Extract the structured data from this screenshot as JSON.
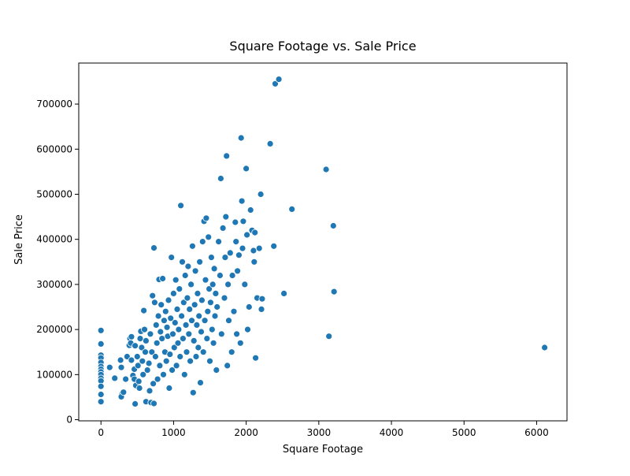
{
  "chart_data": {
    "type": "scatter",
    "title": "Square Footage vs. Sale Price",
    "xlabel": "Square Footage",
    "ylabel": "Sale Price",
    "xlim": [
      -306,
      6418
    ],
    "ylim": [
      -2530,
      791000
    ],
    "xticks": [
      0,
      1000,
      2000,
      3000,
      4000,
      5000,
      6000
    ],
    "yticks": [
      0,
      100000,
      200000,
      300000,
      400000,
      500000,
      600000,
      700000
    ],
    "grid": false,
    "legend": "none",
    "marker_color": "#1f77b4",
    "series": [
      {
        "points": [
          [
            0,
            198000
          ],
          [
            0,
            168000
          ],
          [
            0,
            143000
          ],
          [
            0,
            137000
          ],
          [
            0,
            127000
          ],
          [
            0,
            118000
          ],
          [
            0,
            112000
          ],
          [
            0,
            106000
          ],
          [
            0,
            100000
          ],
          [
            0,
            92000
          ],
          [
            0,
            86000
          ],
          [
            0,
            74000
          ],
          [
            0,
            56000
          ],
          [
            0,
            40000
          ],
          [
            120,
            116000
          ],
          [
            190,
            92000
          ],
          [
            270,
            132000
          ],
          [
            280,
            116000
          ],
          [
            290,
            57000
          ],
          [
            280,
            51000
          ],
          [
            310,
            61000
          ],
          [
            340,
            90000
          ],
          [
            360,
            140000
          ],
          [
            390,
            165000
          ],
          [
            400,
            180000
          ],
          [
            420,
            184000
          ],
          [
            410,
            170000
          ],
          [
            420,
            132000
          ],
          [
            440,
            98000
          ],
          [
            460,
            90000
          ],
          [
            460,
            112000
          ],
          [
            470,
            35000
          ],
          [
            470,
            164000
          ],
          [
            480,
            76000
          ],
          [
            500,
            140000
          ],
          [
            510,
            120000
          ],
          [
            520,
            85000
          ],
          [
            530,
            70000
          ],
          [
            540,
            180000
          ],
          [
            550,
            196000
          ],
          [
            560,
            160000
          ],
          [
            570,
            130000
          ],
          [
            580,
            100000
          ],
          [
            590,
            242000
          ],
          [
            600,
            200000
          ],
          [
            610,
            150000
          ],
          [
            620,
            175000
          ],
          [
            620,
            40000
          ],
          [
            640,
            110000
          ],
          [
            660,
            125000
          ],
          [
            670,
            64000
          ],
          [
            680,
            190000
          ],
          [
            690,
            38000
          ],
          [
            700,
            150000
          ],
          [
            710,
            275000
          ],
          [
            720,
            80000
          ],
          [
            730,
            381000
          ],
          [
            730,
            36000
          ],
          [
            740,
            260000
          ],
          [
            750,
            140000
          ],
          [
            760,
            210000
          ],
          [
            770,
            170000
          ],
          [
            780,
            90000
          ],
          [
            790,
            230000
          ],
          [
            800,
            311000
          ],
          [
            810,
            120000
          ],
          [
            820,
            195000
          ],
          [
            830,
            255000
          ],
          [
            840,
            180000
          ],
          [
            850,
            313000
          ],
          [
            860,
            100000
          ],
          [
            870,
            220000
          ],
          [
            880,
            150000
          ],
          [
            890,
            240000
          ],
          [
            900,
            130000
          ],
          [
            910,
            205000
          ],
          [
            920,
            185000
          ],
          [
            930,
            265000
          ],
          [
            940,
            70000
          ],
          [
            950,
            145000
          ],
          [
            960,
            225000
          ],
          [
            970,
            360000
          ],
          [
            980,
            110000
          ],
          [
            990,
            190000
          ],
          [
            1000,
            280000
          ],
          [
            1010,
            160000
          ],
          [
            1020,
            215000
          ],
          [
            1030,
            310000
          ],
          [
            1040,
            120000
          ],
          [
            1050,
            245000
          ],
          [
            1060,
            170000
          ],
          [
            1070,
            200000
          ],
          [
            1080,
            290000
          ],
          [
            1090,
            140000
          ],
          [
            1100,
            475000
          ],
          [
            1110,
            230000
          ],
          [
            1120,
            350000
          ],
          [
            1130,
            180000
          ],
          [
            1140,
            260000
          ],
          [
            1150,
            100000
          ],
          [
            1160,
            320000
          ],
          [
            1170,
            210000
          ],
          [
            1180,
            150000
          ],
          [
            1190,
            270000
          ],
          [
            1200,
            340000
          ],
          [
            1210,
            190000
          ],
          [
            1220,
            245000
          ],
          [
            1230,
            130000
          ],
          [
            1240,
            300000
          ],
          [
            1250,
            220000
          ],
          [
            1260,
            385000
          ],
          [
            1270,
            60000
          ],
          [
            1280,
            175000
          ],
          [
            1290,
            255000
          ],
          [
            1300,
            330000
          ],
          [
            1310,
            140000
          ],
          [
            1320,
            210000
          ],
          [
            1330,
            280000
          ],
          [
            1340,
            160000
          ],
          [
            1350,
            230000
          ],
          [
            1360,
            350000
          ],
          [
            1370,
            82000
          ],
          [
            1380,
            195000
          ],
          [
            1390,
            265000
          ],
          [
            1400,
            395000
          ],
          [
            1410,
            150000
          ],
          [
            1420,
            440000
          ],
          [
            1430,
            220000
          ],
          [
            1440,
            310000
          ],
          [
            1450,
            447000
          ],
          [
            1460,
            180000
          ],
          [
            1470,
            240000
          ],
          [
            1480,
            405000
          ],
          [
            1490,
            290000
          ],
          [
            1500,
            130000
          ],
          [
            1510,
            260000
          ],
          [
            1520,
            360000
          ],
          [
            1530,
            200000
          ],
          [
            1540,
            300000
          ],
          [
            1550,
            170000
          ],
          [
            1560,
            335000
          ],
          [
            1570,
            230000
          ],
          [
            1580,
            280000
          ],
          [
            1590,
            110000
          ],
          [
            1600,
            250000
          ],
          [
            1620,
            395000
          ],
          [
            1640,
            320000
          ],
          [
            1650,
            535000
          ],
          [
            1660,
            190000
          ],
          [
            1680,
            425000
          ],
          [
            1700,
            270000
          ],
          [
            1710,
            360000
          ],
          [
            1720,
            450000
          ],
          [
            1730,
            585000
          ],
          [
            1740,
            120000
          ],
          [
            1750,
            300000
          ],
          [
            1760,
            220000
          ],
          [
            1780,
            370000
          ],
          [
            1800,
            150000
          ],
          [
            1810,
            320000
          ],
          [
            1830,
            240000
          ],
          [
            1850,
            438000
          ],
          [
            1860,
            395000
          ],
          [
            1870,
            190000
          ],
          [
            1880,
            330000
          ],
          [
            1900,
            365000
          ],
          [
            1920,
            170000
          ],
          [
            1930,
            625000
          ],
          [
            1940,
            485000
          ],
          [
            1950,
            380000
          ],
          [
            1960,
            440000
          ],
          [
            1980,
            300000
          ],
          [
            2000,
            557000
          ],
          [
            2010,
            410000
          ],
          [
            2020,
            200000
          ],
          [
            2040,
            250000
          ],
          [
            2060,
            465000
          ],
          [
            2080,
            420000
          ],
          [
            2100,
            375000
          ],
          [
            2110,
            350000
          ],
          [
            2120,
            415000
          ],
          [
            2130,
            137000
          ],
          [
            2150,
            270000
          ],
          [
            2180,
            380000
          ],
          [
            2200,
            500000
          ],
          [
            2210,
            245000
          ],
          [
            2220,
            268000
          ],
          [
            2330,
            612000
          ],
          [
            2380,
            385000
          ],
          [
            2400,
            745000
          ],
          [
            2450,
            755000
          ],
          [
            2520,
            280000
          ],
          [
            2630,
            467000
          ],
          [
            3100,
            555000
          ],
          [
            3140,
            185000
          ],
          [
            3200,
            430000
          ],
          [
            3210,
            284000
          ],
          [
            6110,
            160000
          ]
        ]
      }
    ]
  }
}
